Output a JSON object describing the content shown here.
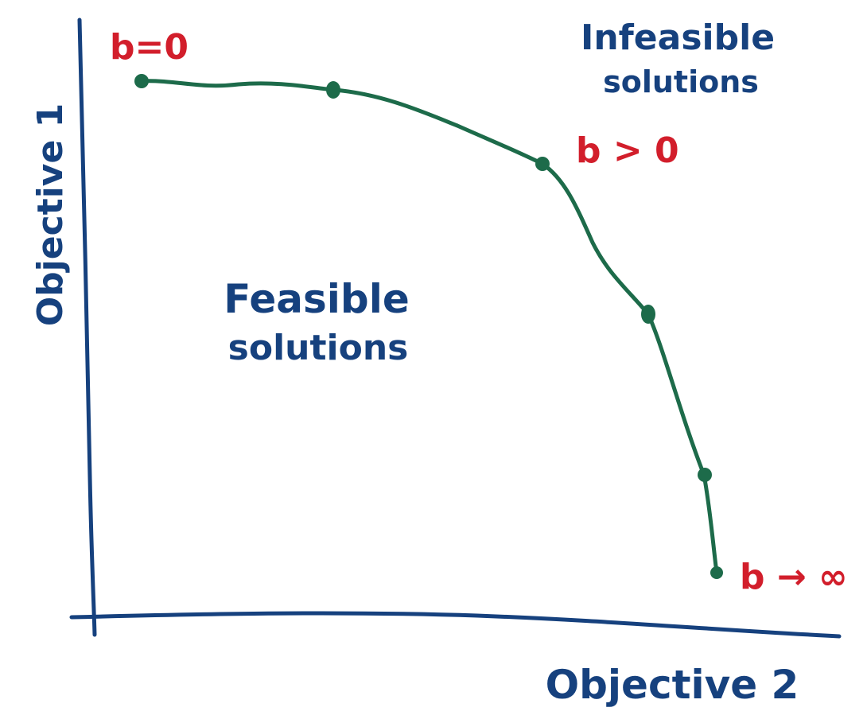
{
  "colors": {
    "axis": "#16417e",
    "curve": "#1d6b4a",
    "label_red": "#d21e2b",
    "label_blue": "#16417e",
    "background": "#ffffff"
  },
  "axes": {
    "y_label": "Objective 1",
    "x_label": "Objective 2"
  },
  "regions": {
    "feasible_line1": "Feasible",
    "feasible_line2": "solutions",
    "infeasible_line1": "Infeasible",
    "infeasible_line2": "solutions"
  },
  "curve": {
    "start_label": "b=0",
    "mid_label": "b > 0",
    "end_label": "b → ∞",
    "point_count": 6
  }
}
